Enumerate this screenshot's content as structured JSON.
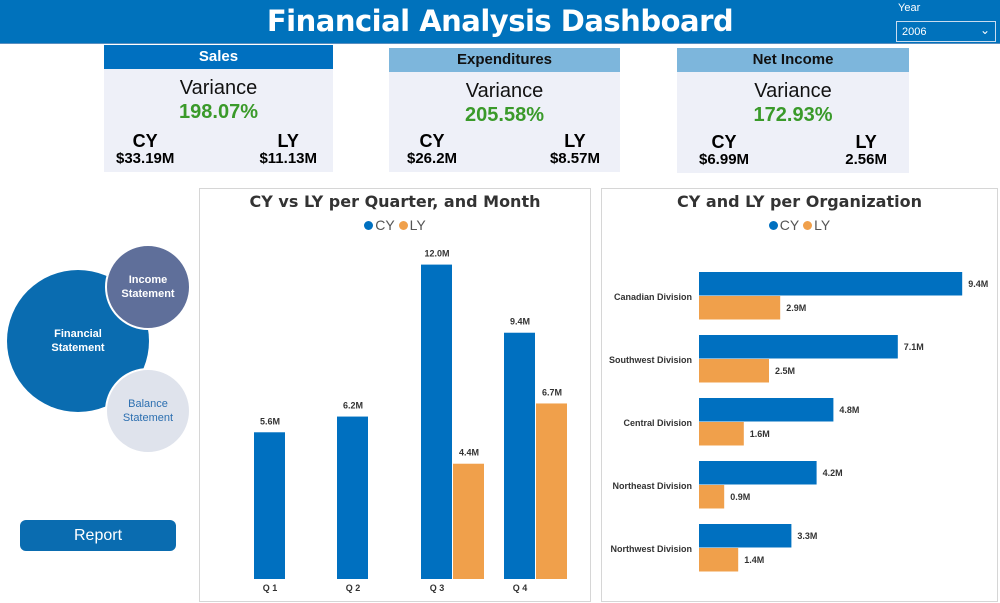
{
  "header": {
    "title": "Financial Analysis Dashboard",
    "year_label": "Year",
    "year_value": "2006"
  },
  "cards": [
    {
      "title": "Sales",
      "variance_label": "Variance",
      "variance": "198.07%",
      "cy_label": "CY",
      "cy": "$33.19M",
      "ly_label": "LY",
      "ly": "$11.13M"
    },
    {
      "title": "Expenditures",
      "variance_label": "Variance",
      "variance": "205.58%",
      "cy_label": "CY",
      "cy": "$26.2M",
      "ly_label": "LY",
      "ly": "$8.57M"
    },
    {
      "title": "Net Income",
      "variance_label": "Variance",
      "variance": "172.93%",
      "cy_label": "CY",
      "cy": "$6.99M",
      "ly_label": "LY",
      "ly": "2.56M"
    }
  ],
  "nav": {
    "financial": "Financial Statement",
    "income": "Income Statement",
    "balance": "Balance Statement",
    "report": "Report"
  },
  "colors": {
    "cy": "#0070c0",
    "ly": "#f0a04b",
    "header": "#0072bc"
  },
  "chart_data": [
    {
      "type": "bar",
      "title": "CY vs LY per Quarter, and Month",
      "legend": [
        "CY",
        "LY"
      ],
      "categories": [
        "Q 1",
        "Q 2",
        "Q 3",
        "Q 4"
      ],
      "series": [
        {
          "name": "CY",
          "values": [
            5.6,
            6.2,
            12.0,
            9.4
          ],
          "labels": [
            "5.6M",
            "6.2M",
            "12.0M",
            "9.4M"
          ]
        },
        {
          "name": "LY",
          "values": [
            null,
            null,
            4.4,
            6.7
          ],
          "labels": [
            "",
            "",
            "4.4M",
            "6.7M"
          ]
        }
      ]
    },
    {
      "type": "bar",
      "orientation": "horizontal",
      "title": "CY and LY per Organization",
      "legend": [
        "CY",
        "LY"
      ],
      "categories": [
        "Canadian Division",
        "Southwest Division",
        "Central Division",
        "Northeast Division",
        "Northwest Division"
      ],
      "series": [
        {
          "name": "CY",
          "values": [
            9.4,
            7.1,
            4.8,
            4.2,
            3.3
          ],
          "labels": [
            "9.4M",
            "7.1M",
            "4.8M",
            "4.2M",
            "3.3M"
          ]
        },
        {
          "name": "LY",
          "values": [
            2.9,
            2.5,
            1.6,
            0.9,
            1.4
          ],
          "labels": [
            "2.9M",
            "2.5M",
            "1.6M",
            "0.9M",
            "1.4M"
          ]
        }
      ]
    }
  ]
}
